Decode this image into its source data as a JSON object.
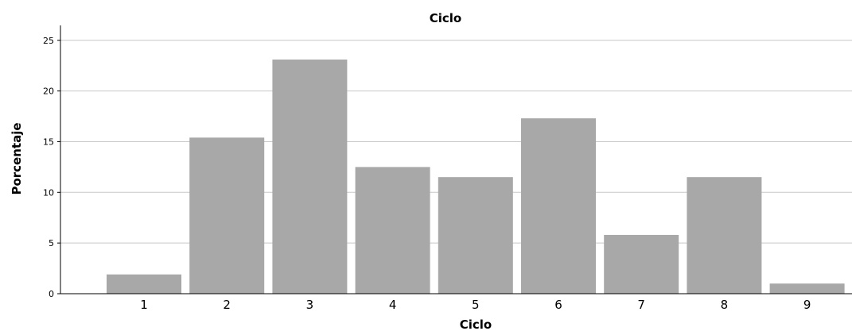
{
  "chart_data": {
    "type": "bar",
    "title": "Ciclo",
    "xlabel": "Ciclo",
    "ylabel": "Porcentaje",
    "categories": [
      "1",
      "2",
      "3",
      "4",
      "5",
      "6",
      "7",
      "8",
      "9"
    ],
    "values": [
      1.9,
      15.4,
      23.1,
      12.5,
      11.5,
      17.3,
      5.8,
      11.5,
      1.0
    ],
    "ylim": [
      0,
      26
    ],
    "yticks": [
      0,
      5,
      10,
      15,
      20,
      25
    ],
    "grid": true,
    "legend": "none",
    "colors": {
      "bar": "#a8a8a8",
      "grid": "#c8c8c8",
      "axis": "#000000",
      "background": "#ffffff"
    }
  }
}
